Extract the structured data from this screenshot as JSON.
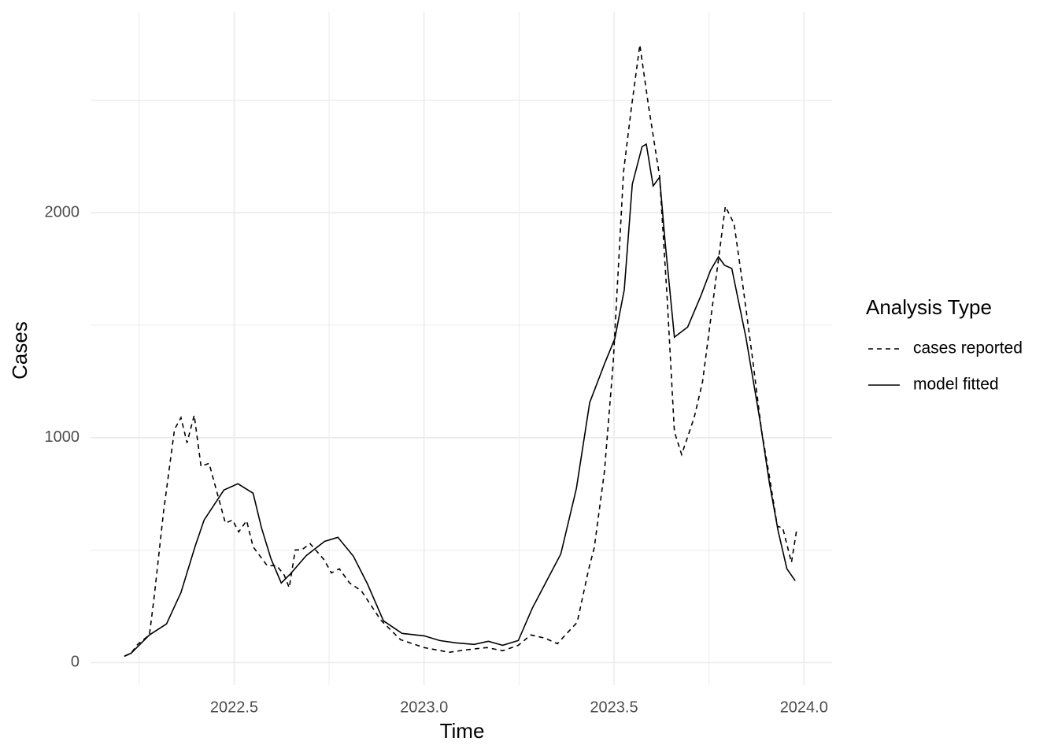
{
  "chart_data": {
    "type": "line",
    "x_label": "Time",
    "y_label": "Cases",
    "legend_title": "Analysis Type",
    "xlim": [
      2022.122,
      2024.074
    ],
    "ylim": [
      -100,
      2893
    ],
    "xticks": [
      {
        "value": 2022.5,
        "label": "2022.5"
      },
      {
        "value": 2023,
        "label": "2023.0"
      },
      {
        "value": 2023.5,
        "label": "2023.5"
      },
      {
        "value": 2024,
        "label": "2024.0"
      }
    ],
    "yticks": [
      0,
      1000,
      2000
    ],
    "minor_xticks": [
      2022.25,
      2022.75,
      2023.25,
      2023.75
    ],
    "minor_yticks": [
      500,
      1500,
      2500
    ],
    "grid": true,
    "legend_position": "right",
    "series": [
      {
        "name": "cases reported",
        "color": "#000000",
        "linetype": "dashed",
        "x": [
          2022.211,
          2022.229,
          2022.246,
          2022.277,
          2022.289,
          2022.314,
          2022.343,
          2022.36,
          2022.376,
          2022.395,
          2022.413,
          2022.434,
          2022.477,
          2022.496,
          2022.512,
          2022.533,
          2022.55,
          2022.587,
          2022.612,
          2022.632,
          2022.645,
          2022.661,
          2022.678,
          2022.7,
          2022.736,
          2022.756,
          2022.777,
          2022.804,
          2022.835,
          2022.886,
          2022.938,
          2023.0,
          2023.066,
          2023.107,
          2023.165,
          2023.207,
          2023.248,
          2023.281,
          2023.318,
          2023.351,
          2023.372,
          2023.403,
          2023.434,
          2023.448,
          2023.475,
          2023.498,
          2023.525,
          2023.545,
          2023.568,
          2023.591,
          2023.62,
          2023.64,
          2023.659,
          2023.678,
          2023.711,
          2023.733,
          2023.764,
          2023.793,
          2023.816,
          2023.839,
          2023.864,
          2023.888,
          2023.909,
          2023.93,
          2023.944,
          2023.967,
          2023.981
        ],
        "values": [
          28,
          42,
          81,
          123,
          284,
          669,
          1037,
          1089,
          977,
          1100,
          872,
          886,
          620,
          634,
          581,
          631,
          515,
          431,
          431,
          389,
          333,
          501,
          501,
          529,
          459,
          399,
          417,
          354,
          319,
          189,
          102,
          67,
          46,
          56,
          67,
          53,
          77,
          123,
          109,
          84,
          123,
          179,
          420,
          511,
          851,
          1335,
          2182,
          2456,
          2746,
          2473,
          2161,
          1615,
          1026,
          925,
          1089,
          1247,
          1650,
          2028,
          1951,
          1678,
          1359,
          1037,
          827,
          606,
          599,
          445,
          592
        ]
      },
      {
        "name": "model fitted",
        "color": "#000000",
        "linetype": "solid",
        "x": [
          2022.211,
          2022.229,
          2022.277,
          2022.322,
          2022.36,
          2022.397,
          2022.421,
          2022.473,
          2022.51,
          2022.55,
          2022.572,
          2022.597,
          2022.624,
          2022.649,
          2022.69,
          2022.738,
          2022.773,
          2022.814,
          2022.851,
          2022.893,
          2022.942,
          2023.0,
          2023.041,
          2023.083,
          2023.132,
          2023.169,
          2023.207,
          2023.248,
          2023.285,
          2023.322,
          2023.36,
          2023.401,
          2023.436,
          2023.475,
          2023.502,
          2023.527,
          2023.548,
          2023.574,
          2023.585,
          2023.603,
          2023.62,
          2023.634,
          2023.659,
          2023.694,
          2023.729,
          2023.754,
          2023.775,
          2023.791,
          2023.81,
          2023.847,
          2023.884,
          2023.909,
          2023.932,
          2023.955,
          2023.977
        ],
        "values": [
          28,
          42,
          123,
          172,
          312,
          515,
          634,
          767,
          795,
          753,
          599,
          462,
          354,
          396,
          476,
          539,
          557,
          473,
          350,
          186,
          130,
          119,
          98,
          88,
          81,
          95,
          77,
          98,
          242,
          361,
          483,
          774,
          1156,
          1328,
          1440,
          1657,
          2126,
          2294,
          2305,
          2119,
          2158,
          1878,
          1447,
          1492,
          1632,
          1744,
          1804,
          1766,
          1752,
          1447,
          1079,
          799,
          585,
          417,
          364
        ]
      }
    ]
  }
}
